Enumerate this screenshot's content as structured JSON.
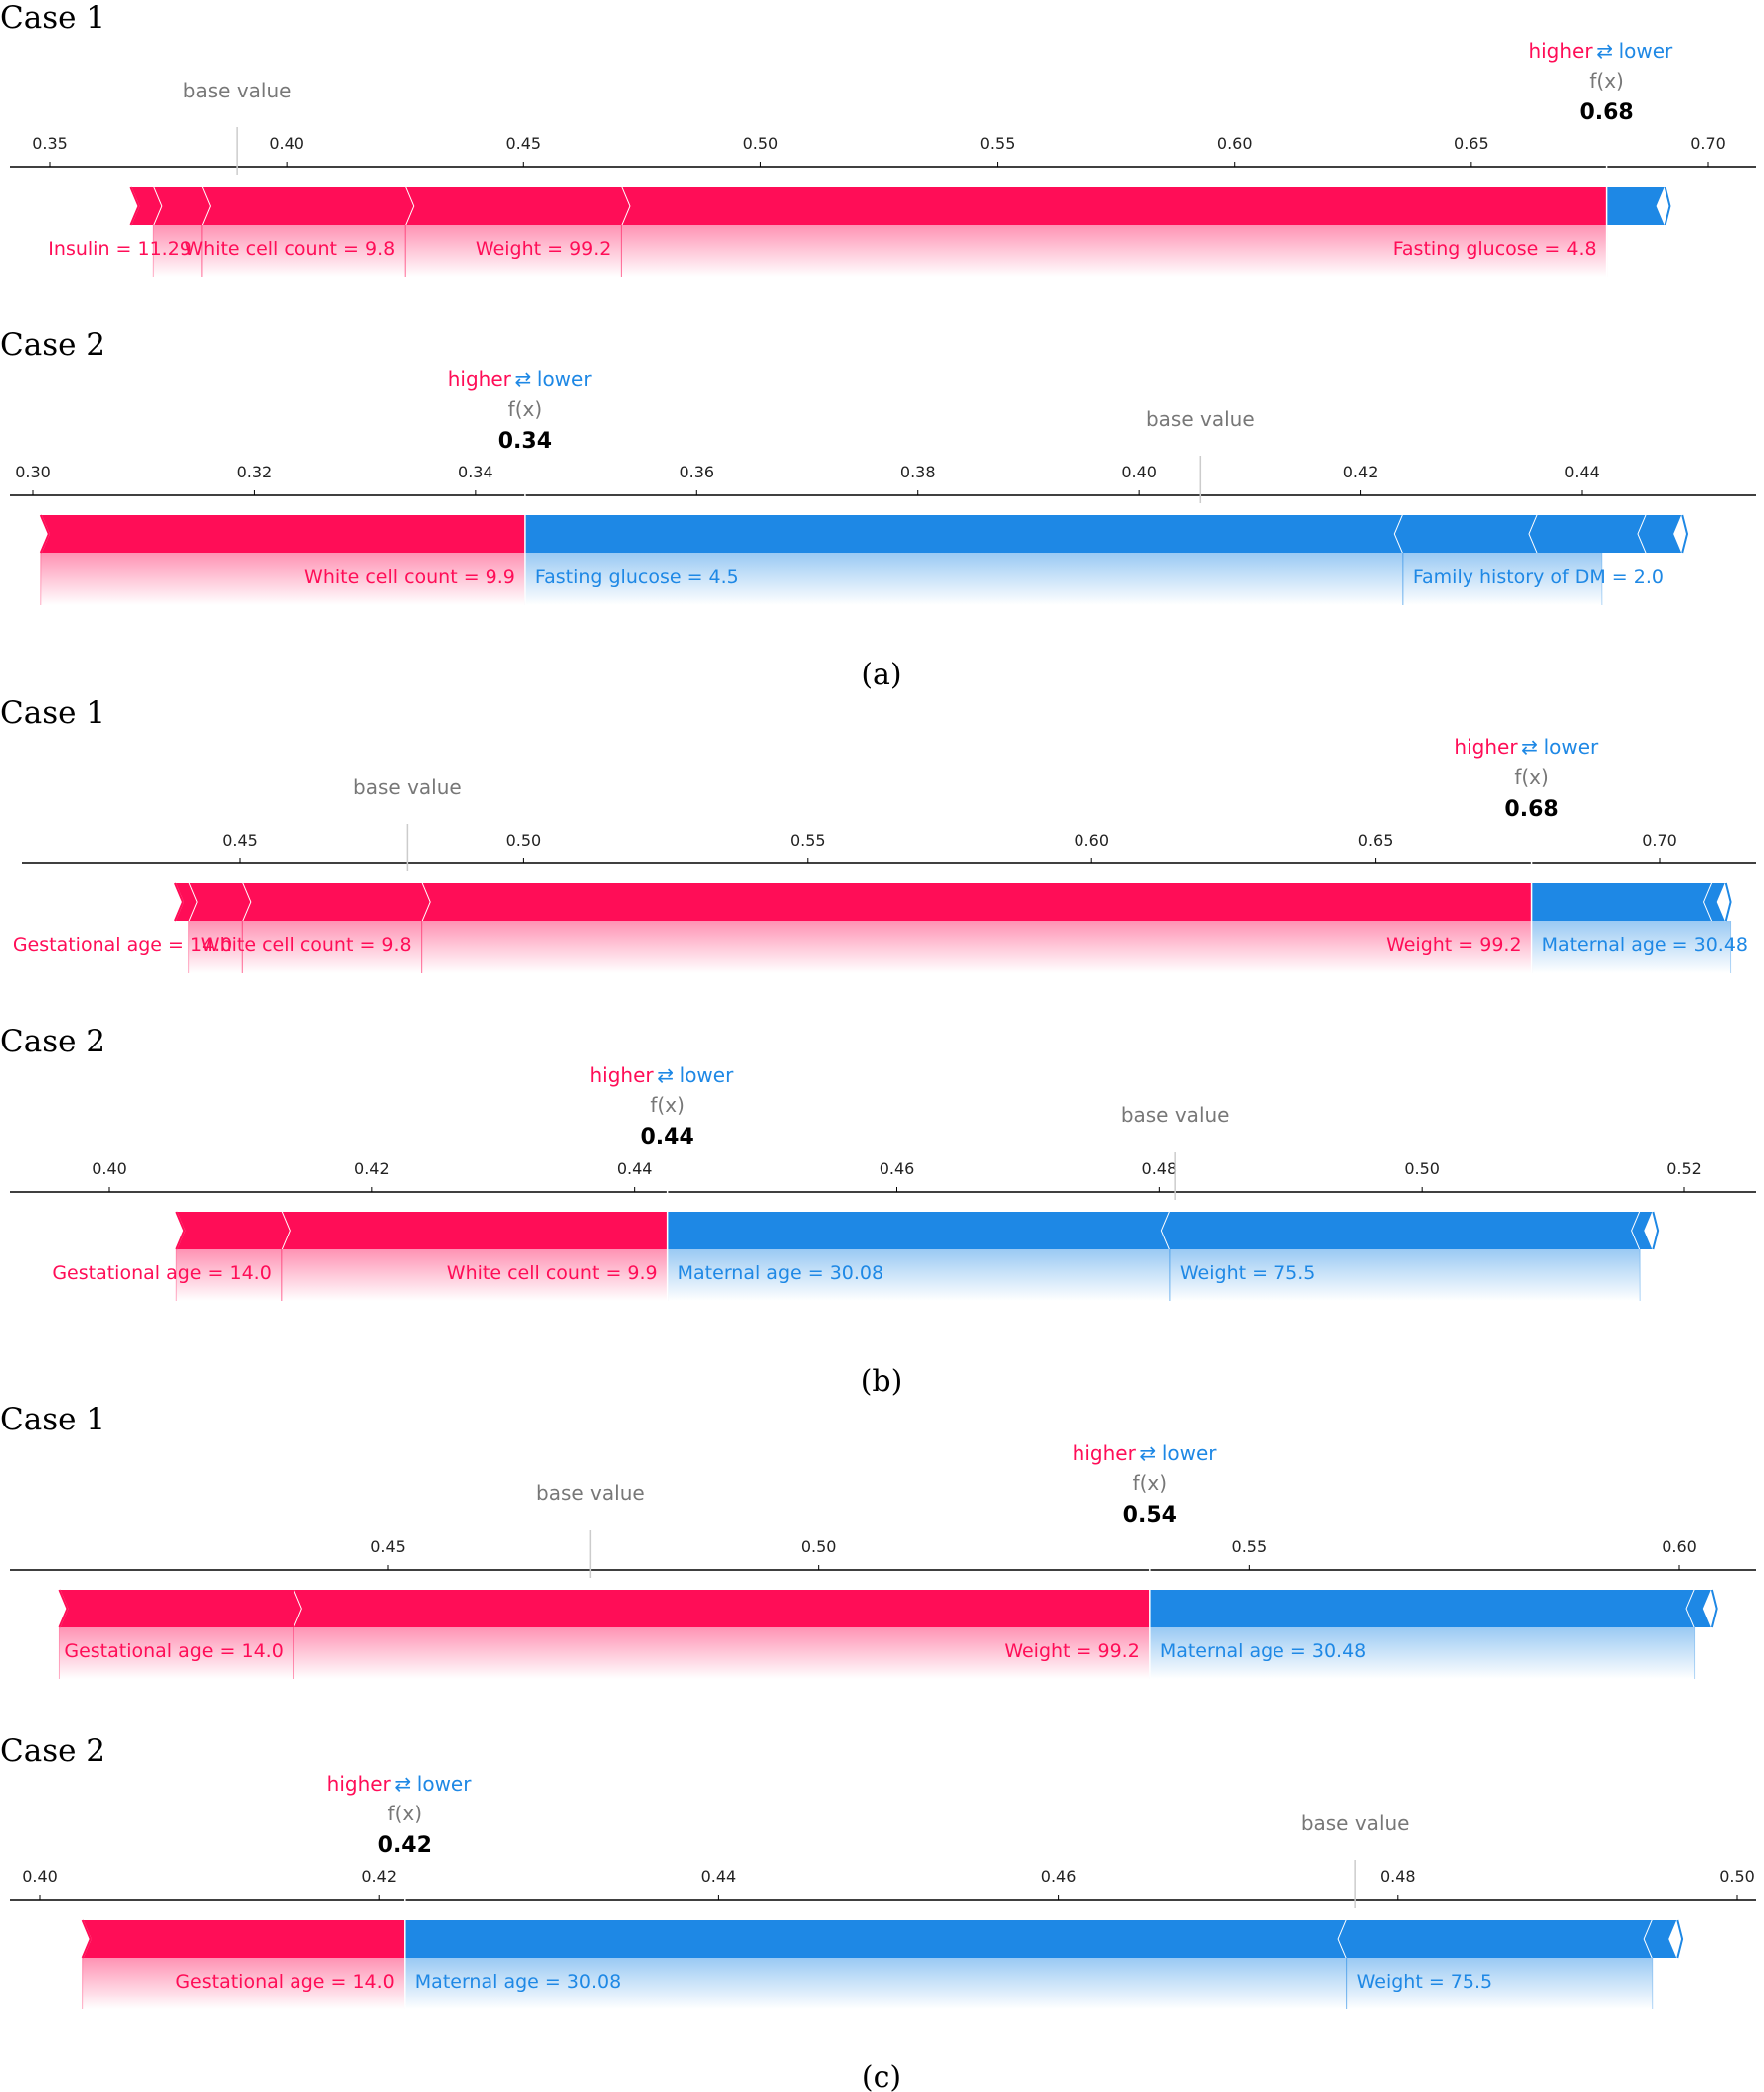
{
  "colors": {
    "pos": "#ff0d57",
    "neg": "#1e88e5",
    "axis": "#000000",
    "tick": "#555555",
    "base": "#777777"
  },
  "legend": {
    "higher": "higher",
    "arrow": "⇄",
    "lower": "lower",
    "fx": "f(x)",
    "base_value": "base value"
  },
  "panels": [
    {
      "label": "(a)",
      "name": "panel-a"
    },
    {
      "label": "(b)",
      "name": "panel-b"
    },
    {
      "label": "(c)",
      "name": "panel-c"
    }
  ],
  "chart_data": [
    {
      "type": "bar",
      "subtype": "shap-force",
      "panel": "(a)",
      "title": "Case 1",
      "xlim": [
        0.34,
        0.719
      ],
      "ticks": [
        0.35,
        0.4,
        0.45,
        0.5,
        0.55,
        0.6,
        0.65,
        0.7
      ],
      "tick_labels": [
        "0.35",
        "0.40",
        "0.45",
        "0.50",
        "0.55",
        "0.60",
        "0.65",
        "0.70"
      ],
      "base_value": 0.3895,
      "fx": 0.6785,
      "fx_label": "0.68",
      "positive": [
        {
          "name": "Fasting glucose = 4.8",
          "value": 0.2079
        },
        {
          "name": "Weight = 99.2",
          "value": 0.0456
        },
        {
          "name": "White cell count = 9.8",
          "value": 0.0429
        },
        {
          "name": "Insulin = 11.29",
          "value": 0.0102
        },
        {
          "name": "",
          "value": 0.0048
        }
      ],
      "negative": [
        {
          "name": "",
          "value": 0.0124
        }
      ]
    },
    {
      "type": "bar",
      "subtype": "shap-force",
      "panel": "(a)",
      "title": "Case 2",
      "xlim": [
        0.298,
        0.452
      ],
      "ticks": [
        0.3,
        0.32,
        0.34,
        0.36,
        0.38,
        0.4,
        0.42,
        0.44
      ],
      "tick_labels": [
        "0.30",
        "0.32",
        "0.34",
        "0.36",
        "0.38",
        "0.40",
        "0.42",
        "0.44"
      ],
      "base_value": 0.4055,
      "fx": 0.3445,
      "fx_label": "0.34",
      "positive": [
        {
          "name": "White cell count = 9.9",
          "value": 0.0438
        }
      ],
      "negative": [
        {
          "name": "Fasting glucose = 4.5",
          "value": 0.0793
        },
        {
          "name": "Family history of DM = 2.0",
          "value": 0.0122
        },
        {
          "name": "",
          "value": 0.0098
        },
        {
          "name": "",
          "value": 0.0033
        }
      ]
    },
    {
      "type": "bar",
      "subtype": "shap-force",
      "panel": "(b)",
      "title": "Case 1",
      "xlim": [
        0.41,
        0.7175
      ],
      "ticks": [
        0.45,
        0.5,
        0.55,
        0.6,
        0.65,
        0.7
      ],
      "tick_labels": [
        "0.45",
        "0.50",
        "0.55",
        "0.60",
        "0.65",
        "0.70"
      ],
      "base_value": 0.4795,
      "fx": 0.6775,
      "fx_label": "0.68",
      "positive": [
        {
          "name": "Weight = 99.2",
          "value": 0.1955
        },
        {
          "name": "White cell count = 9.8",
          "value": 0.0316
        },
        {
          "name": "Gestational age = 14.0",
          "value": 0.0094
        },
        {
          "name": "",
          "value": 0.0024
        }
      ],
      "negative": [
        {
          "name": "Maternal age = 30.48",
          "value": 0.0318
        },
        {
          "name": "",
          "value": 0.0024
        }
      ]
    },
    {
      "type": "bar",
      "subtype": "shap-force",
      "panel": "(b)",
      "title": "Case 2",
      "xlim": [
        0.3945,
        0.5223
      ],
      "ticks": [
        0.4,
        0.42,
        0.44,
        0.46,
        0.48,
        0.5,
        0.52
      ],
      "tick_labels": [
        "0.40",
        "0.42",
        "0.44",
        "0.46",
        "0.48",
        "0.50",
        "0.52"
      ],
      "base_value": 0.4812,
      "fx": 0.4425,
      "fx_label": "0.44",
      "positive": [
        {
          "name": "White cell count = 9.9",
          "value": 0.0294
        },
        {
          "name": "Gestational age = 14.0",
          "value": 0.008
        }
      ],
      "negative": [
        {
          "name": "Maternal age = 30.08",
          "value": 0.0383
        },
        {
          "name": "Weight = 75.5",
          "value": 0.0358
        },
        {
          "name": "",
          "value": 0.001
        }
      ]
    },
    {
      "type": "bar",
      "subtype": "shap-force",
      "panel": "(c)",
      "title": "Case 1",
      "xlim": [
        0.4065,
        0.6075
      ],
      "ticks": [
        0.45,
        0.5,
        0.55,
        0.6
      ],
      "tick_labels": [
        "0.45",
        "0.50",
        "0.55",
        "0.60"
      ],
      "base_value": 0.4735,
      "fx": 0.5385,
      "fx_label": "0.54",
      "positive": [
        {
          "name": "Weight = 99.2",
          "value": 0.0995
        },
        {
          "name": "Gestational age = 14.0",
          "value": 0.0272
        }
      ],
      "negative": [
        {
          "name": "Maternal age = 30.48",
          "value": 0.0633
        },
        {
          "name": "",
          "value": 0.002
        }
      ]
    },
    {
      "type": "bar",
      "subtype": "shap-force",
      "panel": "(c)",
      "title": "Case 2",
      "xlim": [
        0.3975,
        0.5015
      ],
      "ticks": [
        0.4,
        0.42,
        0.44,
        0.46,
        0.48,
        0.5
      ],
      "tick_labels": [
        "0.40",
        "0.42",
        "0.44",
        "0.46",
        "0.48",
        "0.50"
      ],
      "base_value": 0.4775,
      "fx": 0.4215,
      "fx_label": "0.42",
      "positive": [
        {
          "name": "Gestational age = 14.0",
          "value": 0.019
        }
      ],
      "negative": [
        {
          "name": "Maternal age = 30.08",
          "value": 0.0555
        },
        {
          "name": "Weight = 75.5",
          "value": 0.018
        },
        {
          "name": "",
          "value": 0.0015
        }
      ]
    }
  ]
}
